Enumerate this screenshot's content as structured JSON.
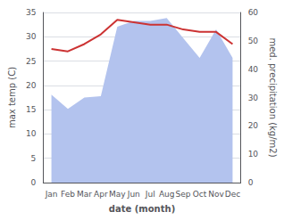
{
  "chart_data": {
    "type": "line",
    "categories": [
      "Jan",
      "Feb",
      "Mar",
      "Apr",
      "May",
      "Jun",
      "Jul",
      "Aug",
      "Sep",
      "Oct",
      "Nov",
      "Dec"
    ],
    "series": [
      {
        "type": "area",
        "axis": "y2",
        "color": "#b3c3ee",
        "values": [
          31.0,
          26.0,
          30.0,
          30.5,
          55.0,
          57.0,
          57.0,
          58.0,
          51.0,
          44.0,
          54.0,
          44.0
        ]
      },
      {
        "type": "line",
        "color": "#cc3333",
        "values": [
          27.5,
          27.0,
          28.5,
          30.5,
          33.5,
          33.0,
          32.5,
          32.5,
          31.5,
          31.0,
          31.0,
          28.5
        ]
      }
    ],
    "xlabel": "date (month)",
    "ylabel": "max temp (C)",
    "y2label": "med. precipitation (kg/m2)",
    "ylim": [
      0,
      35
    ],
    "yticks": [
      0,
      5,
      10,
      15,
      20,
      25,
      30,
      35
    ],
    "y2lim": [
      0,
      60
    ],
    "y2ticks": [
      0,
      10,
      20,
      30,
      40,
      50,
      60
    ],
    "grid": true
  }
}
